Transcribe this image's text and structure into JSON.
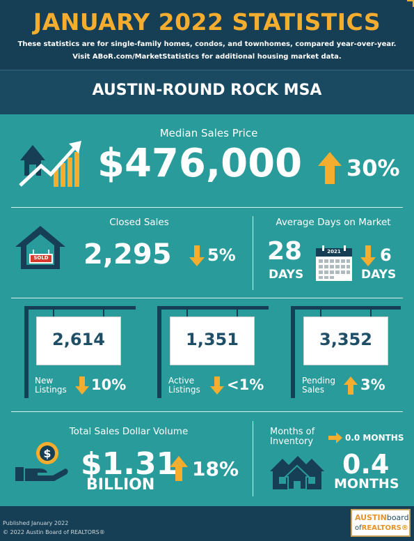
{
  "header": {
    "title": "JANUARY 2022 STATISTICS",
    "line1": "These statistics are for single-family homes, condos, and townhomes, compared year-over-year.",
    "line2": "Visit ABoR.com/MarketStatistics for additional housing market data.",
    "region": "AUSTIN-ROUND ROCK MSA"
  },
  "median": {
    "label": "Median Sales Price",
    "value": "$476,000",
    "change": "30%",
    "direction": "up"
  },
  "closed": {
    "label": "Closed Sales",
    "value": "2,295",
    "change": "5%",
    "direction": "down",
    "sign_text": "SOLD"
  },
  "days": {
    "label": "Average Days on Market",
    "value": "28",
    "unit": "DAYS",
    "calendar_year": "2021",
    "change": "6",
    "change_unit": "DAYS",
    "direction": "down"
  },
  "listings": [
    {
      "value": "2,614",
      "label1": "New",
      "label2": "Listings",
      "change": "10%",
      "direction": "down"
    },
    {
      "value": "1,351",
      "label1": "Active",
      "label2": "Listings",
      "change": "<1%",
      "direction": "down"
    },
    {
      "value": "3,352",
      "label1": "Pending",
      "label2": "Sales",
      "change": "3%",
      "direction": "up"
    }
  ],
  "volume": {
    "label": "Total Sales Dollar Volume",
    "value": "$1.31",
    "unit": "BILLION",
    "change": "18%",
    "direction": "up"
  },
  "inventory": {
    "label1": "Months of",
    "label2": "Inventory",
    "change": "0.0 MONTHS",
    "value": "0.4",
    "unit": "MONTHS"
  },
  "footer": {
    "published": "Published January 2022",
    "copyright": "© 2022 Austin Board of REALTORS®",
    "logo_top_a": "AUSTIN",
    "logo_top_b": "board",
    "logo_bottom_a": "of",
    "logo_bottom_b": "REALTORS®"
  },
  "colors": {
    "navy": "#163e55",
    "teal": "#2a9b9b",
    "gold": "#f4ad2f"
  }
}
